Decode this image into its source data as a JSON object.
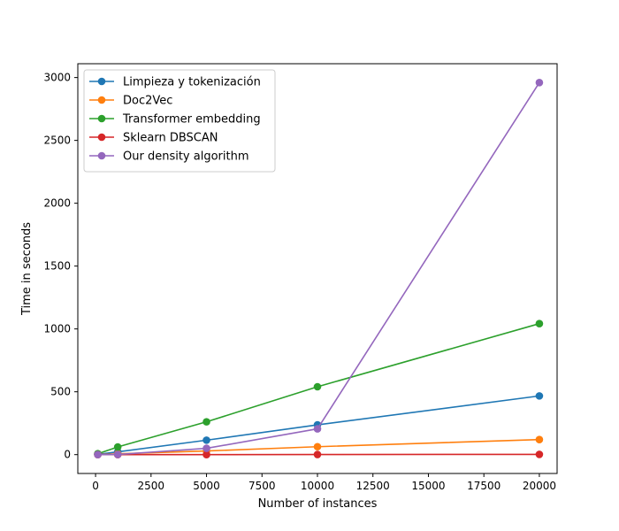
{
  "chart_data": {
    "type": "line",
    "title": "",
    "xlabel": "Number of instances",
    "ylabel": "Time in seconds",
    "xlim": [
      -800,
      20800
    ],
    "ylim": [
      -150,
      3110
    ],
    "x_ticks": [
      0,
      2500,
      5000,
      7500,
      10000,
      12500,
      15000,
      17500,
      20000
    ],
    "y_ticks": [
      0,
      500,
      1000,
      1500,
      2000,
      2500,
      3000
    ],
    "grid": false,
    "legend_position": "upper-left",
    "x": [
      100,
      1000,
      5000,
      10000,
      20000
    ],
    "series": [
      {
        "name": "Limpieza y tokenización",
        "color": "#1f77b4",
        "values": [
          2,
          22,
          115,
          237,
          467
        ]
      },
      {
        "name": "Doc2Vec",
        "color": "#ff7f0e",
        "values": [
          1,
          6,
          29,
          63,
          120
        ]
      },
      {
        "name": "Transformer embedding",
        "color": "#2ca02c",
        "values": [
          7,
          61,
          261,
          540,
          1042
        ]
      },
      {
        "name": "Sklearn DBSCAN",
        "color": "#d62728",
        "values": [
          0,
          0,
          0,
          1,
          2
        ]
      },
      {
        "name": "Our density algorithm",
        "color": "#9467bd",
        "values": [
          0,
          1,
          50,
          205,
          2960
        ]
      }
    ]
  }
}
